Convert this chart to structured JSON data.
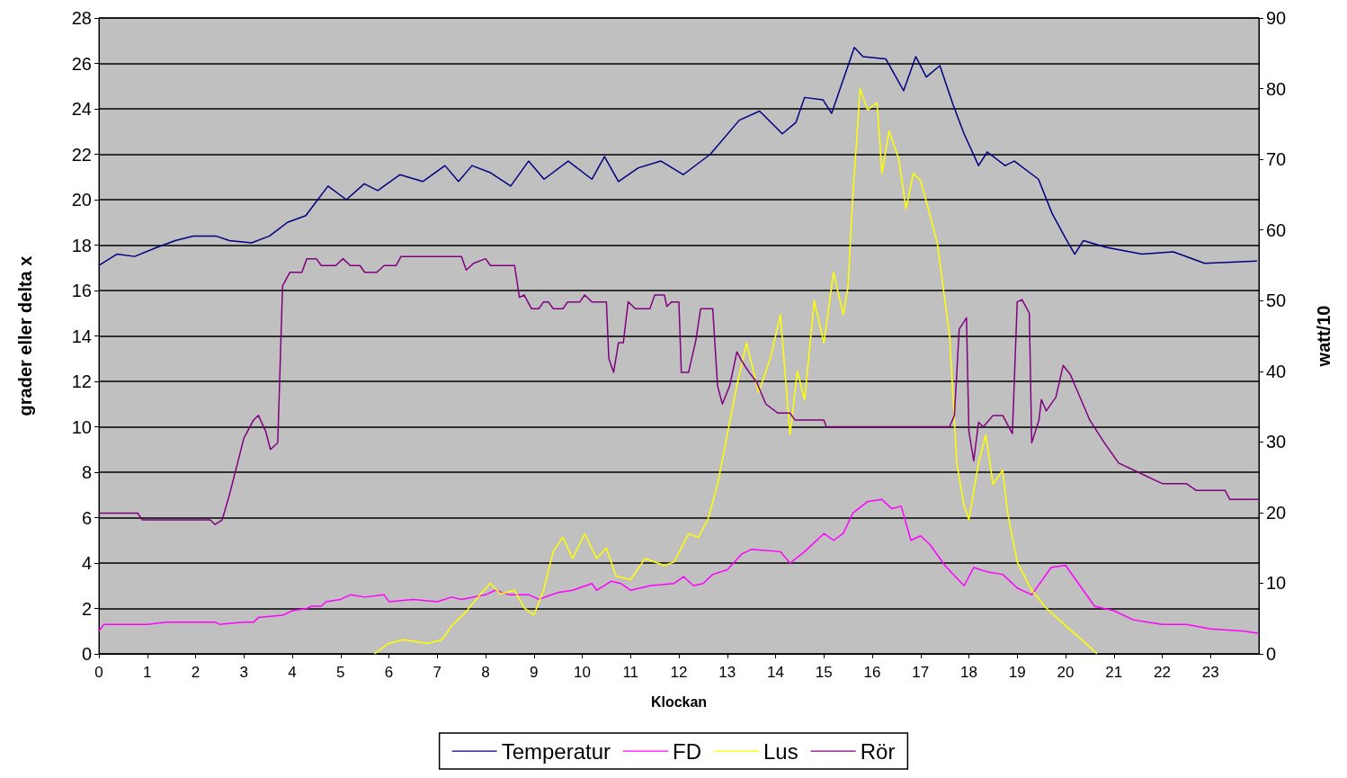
{
  "chart_data": {
    "type": "line",
    "xlabel": "Klockan",
    "ylabel": "grader eller delta x",
    "y2label": "watt/10",
    "xlim": [
      0,
      24
    ],
    "xticks": [
      0,
      1,
      2,
      3,
      4,
      5,
      6,
      7,
      8,
      9,
      10,
      11,
      12,
      13,
      14,
      15,
      16,
      17,
      18,
      19,
      20,
      21,
      22,
      23
    ],
    "ylim": [
      0,
      28
    ],
    "yticks": [
      0,
      2,
      4,
      6,
      8,
      10,
      12,
      14,
      16,
      18,
      20,
      22,
      24,
      26,
      28
    ],
    "y2lim": [
      0,
      90
    ],
    "y2ticks": [
      0,
      10,
      20,
      30,
      40,
      50,
      60,
      70,
      80,
      90
    ],
    "grid": "y",
    "legend": "bottom",
    "marker": "none",
    "line_style": "solid",
    "series": [
      {
        "name": "Temperatur",
        "color": "#000080",
        "x": [
          0,
          0.37,
          0.74,
          1.2,
          1.58,
          1.95,
          2.42,
          2.7,
          3.16,
          3.53,
          3.9,
          4.28,
          4.74,
          5.12,
          5.49,
          5.77,
          6.23,
          6.7,
          7.16,
          7.44,
          7.72,
          8.09,
          8.52,
          8.89,
          9.21,
          9.71,
          10.2,
          10.46,
          10.75,
          11.16,
          11.63,
          12.09,
          12.65,
          13.25,
          13.67,
          14.14,
          14.42,
          14.6,
          14.98,
          15.16,
          15.63,
          15.81,
          16.28,
          16.65,
          16.9,
          17.12,
          17.4,
          17.67,
          17.9,
          18.2,
          18.38,
          18.75,
          18.94,
          19.44,
          19.72,
          20.0,
          20.19,
          20.37,
          20.84,
          21.58,
          22.23,
          22.88,
          23.96
        ],
        "values": [
          17.1,
          17.6,
          17.5,
          17.9,
          18.2,
          18.4,
          18.4,
          18.2,
          18.1,
          18.4,
          19.0,
          19.3,
          20.6,
          20.0,
          20.7,
          20.4,
          21.1,
          20.8,
          21.5,
          20.8,
          21.5,
          21.2,
          20.6,
          21.7,
          20.9,
          21.7,
          20.9,
          21.9,
          20.8,
          21.4,
          21.7,
          21.1,
          22.0,
          23.5,
          23.9,
          22.9,
          23.4,
          24.5,
          24.4,
          23.8,
          26.7,
          26.3,
          26.2,
          24.8,
          26.3,
          25.4,
          25.9,
          24.2,
          22.9,
          21.5,
          22.1,
          21.5,
          21.7,
          20.9,
          19.4,
          18.3,
          17.6,
          18.2,
          17.9,
          17.6,
          17.7,
          17.2,
          17.3
        ]
      },
      {
        "name": "FD",
        "color": "#ff00ff",
        "x": [
          0,
          0.1,
          1.0,
          1.4,
          2.4,
          2.5,
          3.0,
          3.2,
          3.3,
          3.8,
          4.0,
          4.3,
          4.4,
          4.6,
          4.7,
          5.0,
          5.2,
          5.5,
          5.9,
          6.0,
          6.5,
          7.0,
          7.3,
          7.5,
          8.0,
          8.2,
          8.5,
          8.9,
          9.1,
          9.5,
          9.8,
          10.2,
          10.3,
          10.6,
          10.8,
          11.0,
          11.4,
          11.9,
          12.1,
          12.3,
          12.5,
          12.7,
          13.0,
          13.3,
          13.5,
          14.1,
          14.3,
          14.6,
          15.0,
          15.2,
          15.4,
          15.6,
          15.9,
          16.2,
          16.4,
          16.6,
          16.8,
          17.0,
          17.2,
          17.5,
          17.9,
          18.1,
          18.4,
          18.7,
          19.0,
          19.3,
          19.7,
          20.0,
          20.3,
          20.6,
          21.0,
          21.4,
          22.0,
          22.5,
          23.0,
          23.7,
          24.0
        ],
        "values": [
          1.0,
          1.3,
          1.3,
          1.4,
          1.4,
          1.3,
          1.4,
          1.4,
          1.6,
          1.7,
          1.9,
          2.0,
          2.1,
          2.1,
          2.3,
          2.4,
          2.6,
          2.5,
          2.6,
          2.3,
          2.4,
          2.3,
          2.5,
          2.4,
          2.6,
          2.8,
          2.6,
          2.6,
          2.4,
          2.7,
          2.8,
          3.1,
          2.8,
          3.2,
          3.1,
          2.8,
          3.0,
          3.1,
          3.4,
          3.0,
          3.1,
          3.5,
          3.7,
          4.4,
          4.6,
          4.5,
          4.0,
          4.5,
          5.3,
          5.0,
          5.3,
          6.2,
          6.7,
          6.8,
          6.4,
          6.5,
          5.0,
          5.2,
          4.8,
          3.9,
          3.0,
          3.8,
          3.6,
          3.5,
          2.9,
          2.6,
          3.8,
          3.9,
          3.0,
          2.1,
          1.9,
          1.5,
          1.3,
          1.3,
          1.1,
          1.0,
          0.9
        ]
      },
      {
        "name": "Lus",
        "color": "#ffff00",
        "axis": "y2",
        "x": [
          5.7,
          6.0,
          6.3,
          6.8,
          7.1,
          7.3,
          7.6,
          7.9,
          8.1,
          8.3,
          8.6,
          8.8,
          9.0,
          9.2,
          9.4,
          9.6,
          9.8,
          10.05,
          10.3,
          10.5,
          10.7,
          11.0,
          11.3,
          11.7,
          11.9,
          12.2,
          12.4,
          12.6,
          12.8,
          13.0,
          13.2,
          13.4,
          13.65,
          13.9,
          14.1,
          14.3,
          14.45,
          14.6,
          14.8,
          15.0,
          15.2,
          15.4,
          15.5,
          15.6,
          15.75,
          15.9,
          16.1,
          16.2,
          16.35,
          16.55,
          16.7,
          16.85,
          17.0,
          17.2,
          17.35,
          17.6,
          17.75,
          17.9,
          18.0,
          18.2,
          18.35,
          18.5,
          18.7,
          18.8,
          19.0,
          19.3,
          19.6,
          20.0,
          20.5,
          20.65
        ],
        "values": [
          0,
          1.5,
          2,
          1.5,
          2,
          4,
          6,
          8.5,
          10,
          8.5,
          9,
          6.5,
          5.5,
          9,
          14.5,
          16.5,
          13.5,
          17,
          13.5,
          15,
          11,
          10.5,
          13.5,
          12.5,
          13,
          17,
          16.5,
          19,
          24,
          31,
          38,
          44,
          37,
          42,
          48,
          31,
          40,
          36,
          50,
          44,
          54,
          48,
          52,
          65,
          80,
          77,
          78,
          68,
          74,
          70,
          63,
          68,
          67,
          62,
          58,
          45,
          27,
          21,
          19,
          27,
          31,
          24,
          26,
          20,
          13,
          9,
          6.5,
          4,
          1,
          0
        ]
      },
      {
        "name": "Rör",
        "color": "#800080",
        "x": [
          0,
          0.8,
          0.9,
          2.3,
          2.4,
          2.55,
          2.7,
          3.0,
          3.2,
          3.3,
          3.45,
          3.55,
          3.7,
          3.8,
          3.95,
          4.2,
          4.3,
          4.5,
          4.6,
          4.9,
          5.05,
          5.2,
          5.4,
          5.5,
          5.75,
          5.9,
          6.15,
          6.25,
          7.5,
          7.6,
          7.75,
          8.0,
          8.1,
          8.6,
          8.7,
          8.8,
          8.95,
          9.1,
          9.2,
          9.3,
          9.4,
          9.6,
          9.7,
          9.95,
          10.05,
          10.2,
          10.5,
          10.55,
          10.65,
          10.75,
          10.85,
          10.95,
          11.1,
          11.4,
          11.5,
          11.7,
          11.75,
          11.85,
          12.0,
          12.05,
          12.2,
          12.35,
          12.45,
          12.7,
          12.8,
          12.9,
          13.05,
          13.2,
          13.3,
          13.45,
          13.6,
          13.8,
          14.05,
          14.3,
          14.4,
          15.0,
          15.05,
          17.6,
          17.7,
          17.8,
          17.95,
          18.0,
          18.1,
          18.2,
          18.3,
          18.5,
          18.7,
          18.9,
          19.0,
          19.1,
          19.25,
          19.3,
          19.45,
          19.5,
          19.6,
          19.8,
          19.95,
          20.1,
          20.3,
          20.5,
          20.8,
          21.1,
          21.5,
          22.0,
          22.5,
          22.7,
          23.3,
          23.4,
          24.0
        ],
        "values": [
          6.2,
          6.2,
          5.9,
          5.9,
          5.7,
          5.9,
          7.0,
          9.5,
          10.3,
          10.5,
          9.8,
          9.0,
          9.3,
          16.2,
          16.8,
          16.8,
          17.4,
          17.4,
          17.1,
          17.1,
          17.4,
          17.1,
          17.1,
          16.8,
          16.8,
          17.1,
          17.1,
          17.5,
          17.5,
          16.9,
          17.2,
          17.4,
          17.1,
          17.1,
          15.7,
          15.8,
          15.2,
          15.2,
          15.5,
          15.5,
          15.2,
          15.2,
          15.5,
          15.5,
          15.8,
          15.5,
          15.5,
          13.0,
          12.4,
          13.7,
          13.7,
          15.5,
          15.2,
          15.2,
          15.8,
          15.8,
          15.3,
          15.5,
          15.5,
          12.4,
          12.4,
          13.8,
          15.2,
          15.2,
          11.8,
          11.0,
          11.8,
          13.3,
          12.9,
          12.4,
          12.0,
          11.0,
          10.6,
          10.6,
          10.3,
          10.3,
          10.0,
          10.0,
          10.5,
          14.3,
          14.8,
          9.8,
          8.5,
          10.2,
          10.0,
          10.5,
          10.5,
          9.7,
          15.5,
          15.6,
          15.0,
          9.3,
          10.3,
          11.2,
          10.7,
          11.3,
          12.7,
          12.3,
          11.3,
          10.3,
          9.3,
          8.4,
          8.0,
          7.5,
          7.5,
          7.2,
          7.2,
          6.8,
          6.8
        ]
      }
    ]
  }
}
